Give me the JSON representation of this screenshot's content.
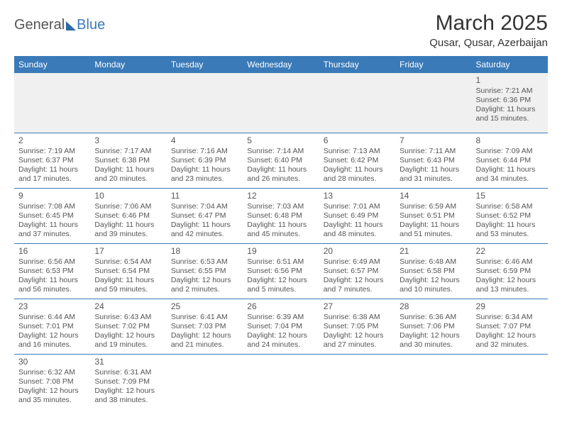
{
  "logo": {
    "part1": "General",
    "part2": "Blue"
  },
  "title": "March 2025",
  "location": "Qusar, Qusar, Azerbaijan",
  "dayHeaders": [
    "Sunday",
    "Monday",
    "Tuesday",
    "Wednesday",
    "Thursday",
    "Friday",
    "Saturday"
  ],
  "weeks": [
    [
      null,
      null,
      null,
      null,
      null,
      null,
      {
        "num": "1",
        "sunrise": "Sunrise: 7:21 AM",
        "sunset": "Sunset: 6:36 PM",
        "daylight1": "Daylight: 11 hours",
        "daylight2": "and 15 minutes."
      }
    ],
    [
      {
        "num": "2",
        "sunrise": "Sunrise: 7:19 AM",
        "sunset": "Sunset: 6:37 PM",
        "daylight1": "Daylight: 11 hours",
        "daylight2": "and 17 minutes."
      },
      {
        "num": "3",
        "sunrise": "Sunrise: 7:17 AM",
        "sunset": "Sunset: 6:38 PM",
        "daylight1": "Daylight: 11 hours",
        "daylight2": "and 20 minutes."
      },
      {
        "num": "4",
        "sunrise": "Sunrise: 7:16 AM",
        "sunset": "Sunset: 6:39 PM",
        "daylight1": "Daylight: 11 hours",
        "daylight2": "and 23 minutes."
      },
      {
        "num": "5",
        "sunrise": "Sunrise: 7:14 AM",
        "sunset": "Sunset: 6:40 PM",
        "daylight1": "Daylight: 11 hours",
        "daylight2": "and 26 minutes."
      },
      {
        "num": "6",
        "sunrise": "Sunrise: 7:13 AM",
        "sunset": "Sunset: 6:42 PM",
        "daylight1": "Daylight: 11 hours",
        "daylight2": "and 28 minutes."
      },
      {
        "num": "7",
        "sunrise": "Sunrise: 7:11 AM",
        "sunset": "Sunset: 6:43 PM",
        "daylight1": "Daylight: 11 hours",
        "daylight2": "and 31 minutes."
      },
      {
        "num": "8",
        "sunrise": "Sunrise: 7:09 AM",
        "sunset": "Sunset: 6:44 PM",
        "daylight1": "Daylight: 11 hours",
        "daylight2": "and 34 minutes."
      }
    ],
    [
      {
        "num": "9",
        "sunrise": "Sunrise: 7:08 AM",
        "sunset": "Sunset: 6:45 PM",
        "daylight1": "Daylight: 11 hours",
        "daylight2": "and 37 minutes."
      },
      {
        "num": "10",
        "sunrise": "Sunrise: 7:06 AM",
        "sunset": "Sunset: 6:46 PM",
        "daylight1": "Daylight: 11 hours",
        "daylight2": "and 39 minutes."
      },
      {
        "num": "11",
        "sunrise": "Sunrise: 7:04 AM",
        "sunset": "Sunset: 6:47 PM",
        "daylight1": "Daylight: 11 hours",
        "daylight2": "and 42 minutes."
      },
      {
        "num": "12",
        "sunrise": "Sunrise: 7:03 AM",
        "sunset": "Sunset: 6:48 PM",
        "daylight1": "Daylight: 11 hours",
        "daylight2": "and 45 minutes."
      },
      {
        "num": "13",
        "sunrise": "Sunrise: 7:01 AM",
        "sunset": "Sunset: 6:49 PM",
        "daylight1": "Daylight: 11 hours",
        "daylight2": "and 48 minutes."
      },
      {
        "num": "14",
        "sunrise": "Sunrise: 6:59 AM",
        "sunset": "Sunset: 6:51 PM",
        "daylight1": "Daylight: 11 hours",
        "daylight2": "and 51 minutes."
      },
      {
        "num": "15",
        "sunrise": "Sunrise: 6:58 AM",
        "sunset": "Sunset: 6:52 PM",
        "daylight1": "Daylight: 11 hours",
        "daylight2": "and 53 minutes."
      }
    ],
    [
      {
        "num": "16",
        "sunrise": "Sunrise: 6:56 AM",
        "sunset": "Sunset: 6:53 PM",
        "daylight1": "Daylight: 11 hours",
        "daylight2": "and 56 minutes."
      },
      {
        "num": "17",
        "sunrise": "Sunrise: 6:54 AM",
        "sunset": "Sunset: 6:54 PM",
        "daylight1": "Daylight: 11 hours",
        "daylight2": "and 59 minutes."
      },
      {
        "num": "18",
        "sunrise": "Sunrise: 6:53 AM",
        "sunset": "Sunset: 6:55 PM",
        "daylight1": "Daylight: 12 hours",
        "daylight2": "and 2 minutes."
      },
      {
        "num": "19",
        "sunrise": "Sunrise: 6:51 AM",
        "sunset": "Sunset: 6:56 PM",
        "daylight1": "Daylight: 12 hours",
        "daylight2": "and 5 minutes."
      },
      {
        "num": "20",
        "sunrise": "Sunrise: 6:49 AM",
        "sunset": "Sunset: 6:57 PM",
        "daylight1": "Daylight: 12 hours",
        "daylight2": "and 7 minutes."
      },
      {
        "num": "21",
        "sunrise": "Sunrise: 6:48 AM",
        "sunset": "Sunset: 6:58 PM",
        "daylight1": "Daylight: 12 hours",
        "daylight2": "and 10 minutes."
      },
      {
        "num": "22",
        "sunrise": "Sunrise: 6:46 AM",
        "sunset": "Sunset: 6:59 PM",
        "daylight1": "Daylight: 12 hours",
        "daylight2": "and 13 minutes."
      }
    ],
    [
      {
        "num": "23",
        "sunrise": "Sunrise: 6:44 AM",
        "sunset": "Sunset: 7:01 PM",
        "daylight1": "Daylight: 12 hours",
        "daylight2": "and 16 minutes."
      },
      {
        "num": "24",
        "sunrise": "Sunrise: 6:43 AM",
        "sunset": "Sunset: 7:02 PM",
        "daylight1": "Daylight: 12 hours",
        "daylight2": "and 19 minutes."
      },
      {
        "num": "25",
        "sunrise": "Sunrise: 6:41 AM",
        "sunset": "Sunset: 7:03 PM",
        "daylight1": "Daylight: 12 hours",
        "daylight2": "and 21 minutes."
      },
      {
        "num": "26",
        "sunrise": "Sunrise: 6:39 AM",
        "sunset": "Sunset: 7:04 PM",
        "daylight1": "Daylight: 12 hours",
        "daylight2": "and 24 minutes."
      },
      {
        "num": "27",
        "sunrise": "Sunrise: 6:38 AM",
        "sunset": "Sunset: 7:05 PM",
        "daylight1": "Daylight: 12 hours",
        "daylight2": "and 27 minutes."
      },
      {
        "num": "28",
        "sunrise": "Sunrise: 6:36 AM",
        "sunset": "Sunset: 7:06 PM",
        "daylight1": "Daylight: 12 hours",
        "daylight2": "and 30 minutes."
      },
      {
        "num": "29",
        "sunrise": "Sunrise: 6:34 AM",
        "sunset": "Sunset: 7:07 PM",
        "daylight1": "Daylight: 12 hours",
        "daylight2": "and 32 minutes."
      }
    ],
    [
      {
        "num": "30",
        "sunrise": "Sunrise: 6:32 AM",
        "sunset": "Sunset: 7:08 PM",
        "daylight1": "Daylight: 12 hours",
        "daylight2": "and 35 minutes."
      },
      {
        "num": "31",
        "sunrise": "Sunrise: 6:31 AM",
        "sunset": "Sunset: 7:09 PM",
        "daylight1": "Daylight: 12 hours",
        "daylight2": "and 38 minutes."
      },
      null,
      null,
      null,
      null,
      null
    ]
  ],
  "colors": {
    "header_bg": "#3a7ab8",
    "header_text": "#ffffff",
    "border": "#3a7ab8",
    "empty_bg": "#f0f0f0",
    "text": "#555555"
  }
}
